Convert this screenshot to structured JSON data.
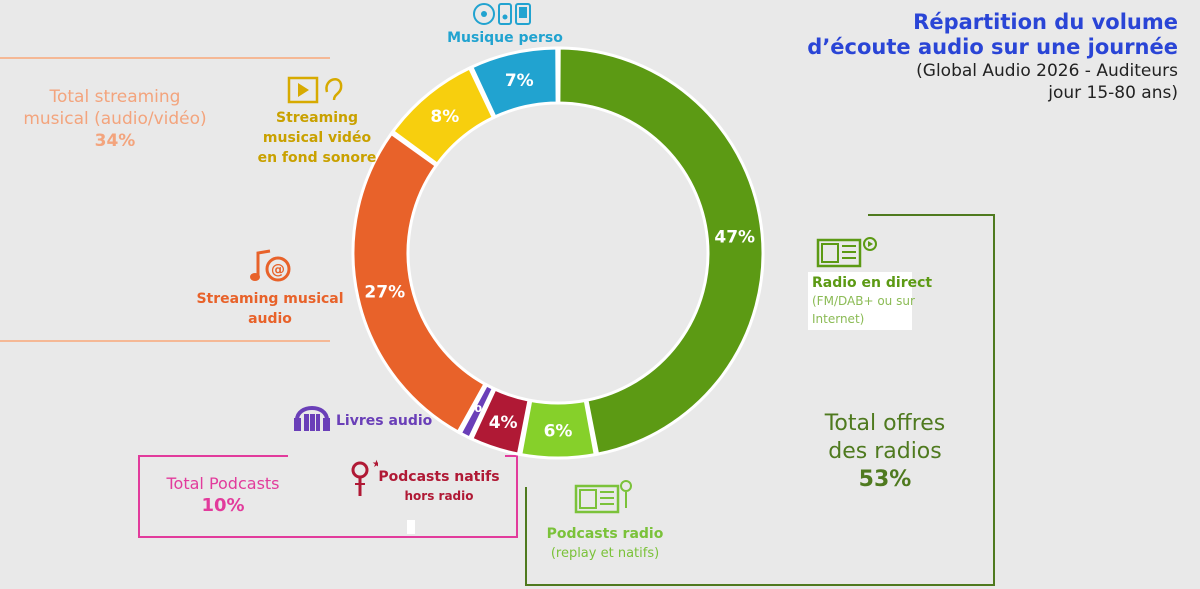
{
  "title": {
    "line1": "Répartition du volume",
    "line2": "d’écoute audio sur une journée",
    "sub1": "(Global Audio 2026 - Auditeurs",
    "sub2": "jour 15-80 ans)"
  },
  "colors": {
    "radio_direct": "#5c9a14",
    "podcasts_radio": "#86d02a",
    "podcasts_natifs": "#b01935",
    "livres_audio": "#6a3fb8",
    "streaming_audio": "#e8622a",
    "streaming_video": "#f7cf0e",
    "musique_perso": "#21a3d0",
    "total_streaming": "#f3a47d",
    "total_podcasts": "#e23b9c",
    "total_radios": "#4f7a1f"
  },
  "groups": {
    "streaming": {
      "label1": "Total streaming",
      "label2": "musical (audio/vidéo)",
      "value": "34%"
    },
    "podcasts": {
      "label": "Total Podcasts",
      "value": "10%"
    },
    "radios": {
      "label1": "Total offres",
      "label2": "des radios",
      "value": "53%"
    }
  },
  "labels": {
    "musique_perso": "Musique perso",
    "streaming_video": [
      "Streaming",
      "musical vidéo",
      "en fond sonore"
    ],
    "streaming_audio": [
      "Streaming musical",
      "audio"
    ],
    "livres_audio": "Livres audio",
    "podcasts_natifs": [
      "Podcasts natifs",
      "hors radio"
    ],
    "podcasts_radio": [
      "Podcasts radio",
      "(replay et natifs)"
    ],
    "radio_direct": [
      "Radio en direct",
      "(FM/DAB+ ou sur",
      "Internet)"
    ]
  },
  "icons": {
    "musique_perso": "cd-phone-icon",
    "streaming_video": "video-play-ear-icon",
    "streaming_audio": "music-note-at-icon",
    "livres_audio": "headphones-books-icon",
    "podcasts_natifs": "microphone-icon",
    "podcasts_radio": "radio-icon",
    "radio_direct": "radio-play-icon"
  },
  "chart_data": {
    "type": "pie",
    "donut": true,
    "start": "top",
    "direction": "clockwise",
    "slices": [
      {
        "key": "radio_direct",
        "label": "Radio en direct",
        "value": 47,
        "value_label": "47%"
      },
      {
        "key": "podcasts_radio",
        "label": "Podcasts radio",
        "value": 6,
        "value_label": "6%"
      },
      {
        "key": "podcasts_natifs",
        "label": "Podcasts natifs hors radio",
        "value": 4,
        "value_label": "4%"
      },
      {
        "key": "livres_audio",
        "label": "Livres audio",
        "value": 1,
        "value_label": "1%"
      },
      {
        "key": "streaming_audio",
        "label": "Streaming musical audio",
        "value": 27,
        "value_label": "27%"
      },
      {
        "key": "streaming_video",
        "label": "Streaming musical vidéo en fond sonore",
        "value": 8,
        "value_label": "8%"
      },
      {
        "key": "musique_perso",
        "label": "Musique perso",
        "value": 7,
        "value_label": "7%"
      }
    ]
  }
}
